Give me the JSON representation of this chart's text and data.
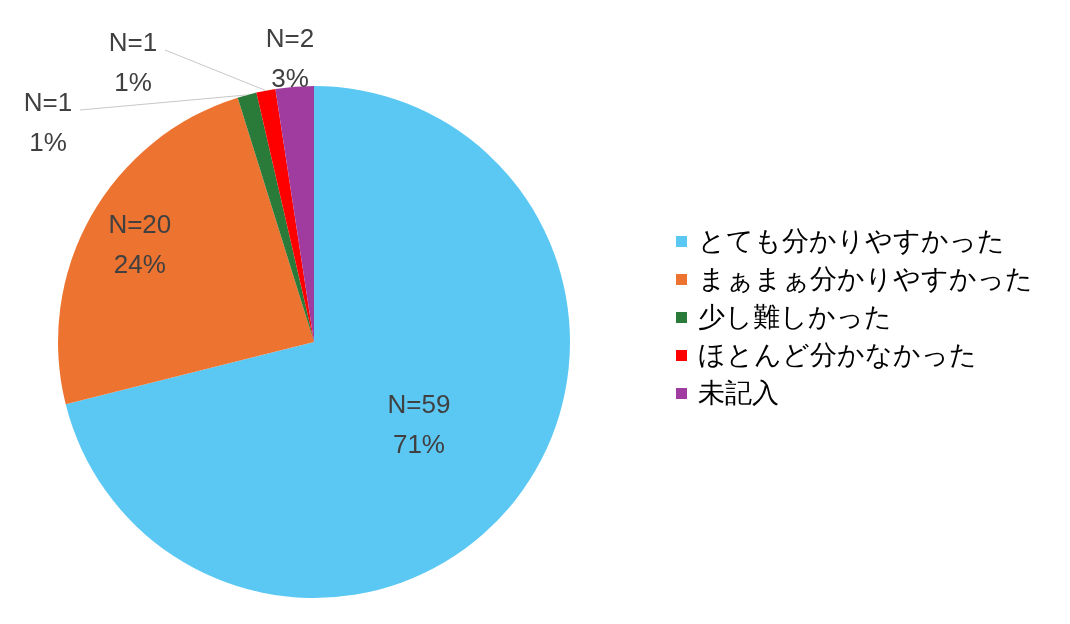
{
  "chart_data": {
    "type": "pie",
    "categories": [
      "とても分かりやすかった",
      "まぁまぁ分かりやすかった",
      "少し難しかった",
      "ほとんど分かなかった",
      "未記入"
    ],
    "values": [
      59,
      20,
      1,
      1,
      2
    ],
    "value_labels": [
      "N=59\n71%",
      "N=20\n24%",
      "N=1\n1%",
      "N=1\n1%",
      "N=2\n3%"
    ],
    "colors": [
      "#5bc8f4",
      "#ed7330",
      "#2a7a3a",
      "#ff0000",
      "#a03ca0"
    ],
    "legend": "right"
  }
}
